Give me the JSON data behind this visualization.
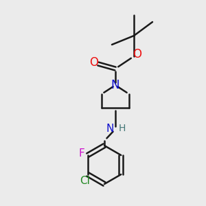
{
  "background_color": "#ebebeb",
  "bond_color": "#1a1a1a",
  "bond_width": 1.8,
  "figsize": [
    3.0,
    3.0
  ],
  "dpi": 100,
  "label_colors": {
    "N": "#1010cc",
    "O": "#ee1111",
    "F": "#cc11cc",
    "Cl": "#228822",
    "H": "#447777",
    "C": "#1a1a1a"
  }
}
